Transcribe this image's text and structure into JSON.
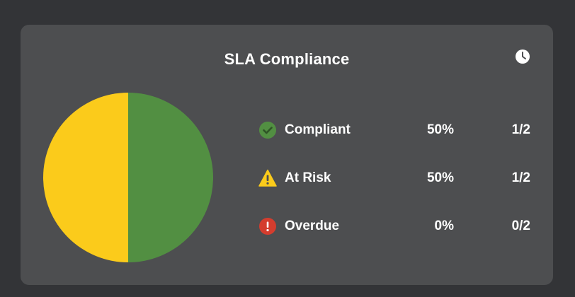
{
  "widget": {
    "title": "SLA Compliance",
    "clock_icon": "clock-icon"
  },
  "colors": {
    "compliant": "#528f42",
    "at_risk": "#fbcb1b",
    "overdue": "#d43d2e"
  },
  "legend": [
    {
      "icon": "check-circle-icon",
      "label": "Compliant",
      "percent": "50%",
      "fraction": "1/2"
    },
    {
      "icon": "warning-triangle-icon",
      "label": "At Risk",
      "percent": "50%",
      "fraction": "1/2"
    },
    {
      "icon": "error-circle-icon",
      "label": "Overdue",
      "percent": "0%",
      "fraction": "0/2"
    }
  ],
  "chart_data": {
    "type": "pie",
    "categories": [
      "Compliant",
      "At Risk",
      "Overdue"
    ],
    "values": [
      1,
      1,
      0
    ],
    "colors": [
      "#528f42",
      "#fbcb1b",
      "#d43d2e"
    ]
  }
}
